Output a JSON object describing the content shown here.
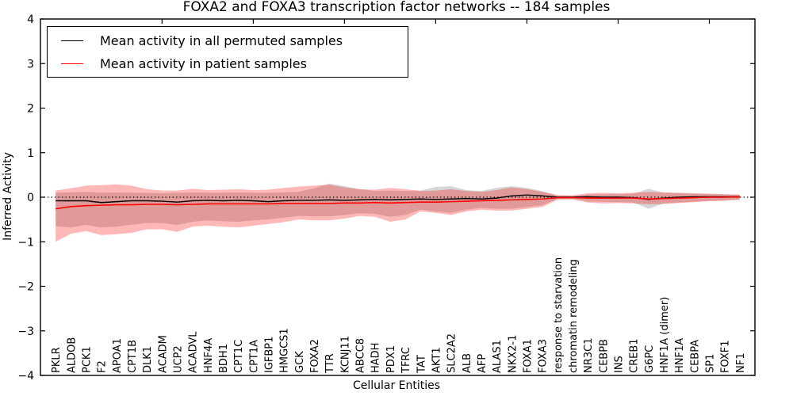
{
  "figure": {
    "background": "#ffffff"
  },
  "legend": {
    "position": "upper left",
    "items": [
      {
        "label": "Mean activity in all permuted samples",
        "color": "#000000"
      },
      {
        "label": "Mean activity in patient samples",
        "color": "#ff0000"
      }
    ]
  },
  "chart_data": {
    "type": "line",
    "title": "FOXA2 and FOXA3 transcription factor networks -- 184 samples",
    "xlabel": "Cellular Entities",
    "ylabel": "Inferred Activity",
    "ylim": [
      -4,
      4
    ],
    "ytick_labels": [
      "4",
      "3",
      "2",
      "1",
      "0",
      "−1",
      "−2",
      "−3",
      "−4"
    ],
    "ytick_values": [
      4,
      3,
      2,
      1,
      0,
      -1,
      -2,
      -3,
      -4
    ],
    "xticks_top": [
      7,
      13,
      19,
      25,
      31,
      37,
      43
    ],
    "grid": false,
    "zero_reference_line": {
      "value": 0,
      "style": "dotted",
      "color": "#000000"
    },
    "legend_position": "upper left",
    "categories": [
      "PKLR",
      "ALDOB",
      "PCK1",
      "F2",
      "APOA1",
      "CPT1B",
      "DLK1",
      "ACADM",
      "UCP2",
      "ACADVL",
      "HNF4A",
      "BDH1",
      "CPT1C",
      "CPT1A",
      "IGFBP1",
      "HMGCS1",
      "GCK",
      "FOXA2",
      "TTR",
      "KCNJ11",
      "ABCC8",
      "HADH",
      "PDX1",
      "TFRC",
      "TAT",
      "AKT1",
      "SLC2A2",
      "ALB",
      "AFP",
      "ALAS1",
      "NKX2-1",
      "FOXA1",
      "FOXA3",
      "response to starvation",
      "chromatin remodeling",
      "NR3C1",
      "CEBPB",
      "INS",
      "CREB1",
      "G6PC",
      "HNF1A (dimer)",
      "HNF1A",
      "CEBPA",
      "SP1",
      "FOXF1",
      "NF1"
    ],
    "series": [
      {
        "name": "Mean activity in all permuted samples",
        "color": "#000000",
        "band_color": "rgba(128,128,128,0.32)",
        "values": [
          -0.08,
          -0.08,
          -0.08,
          -0.12,
          -0.1,
          -0.08,
          -0.08,
          -0.09,
          -0.11,
          -0.08,
          -0.07,
          -0.08,
          -0.07,
          -0.08,
          -0.1,
          -0.08,
          -0.07,
          -0.07,
          -0.06,
          -0.07,
          -0.06,
          -0.05,
          -0.06,
          -0.05,
          -0.04,
          -0.05,
          -0.04,
          -0.03,
          -0.04,
          -0.02,
          0.03,
          0.05,
          0.03,
          0.0,
          0.0,
          0.01,
          0.0,
          0.0,
          -0.01,
          -0.05,
          -0.02,
          0.0,
          0.01,
          0.01,
          0.01,
          0.01
        ],
        "band_upper": [
          0.1,
          0.11,
          0.12,
          0.1,
          0.11,
          0.1,
          0.1,
          0.09,
          0.1,
          0.11,
          0.1,
          0.1,
          0.11,
          0.1,
          0.1,
          0.11,
          0.12,
          0.2,
          0.31,
          0.25,
          0.18,
          0.14,
          0.15,
          0.14,
          0.15,
          0.23,
          0.25,
          0.16,
          0.14,
          0.21,
          0.25,
          0.21,
          0.14,
          0.04,
          0.03,
          0.06,
          0.07,
          0.07,
          0.08,
          0.19,
          0.1,
          0.09,
          0.08,
          0.07,
          0.06,
          0.05
        ],
        "band_lower": [
          -0.65,
          -0.68,
          -0.62,
          -0.68,
          -0.66,
          -0.62,
          -0.58,
          -0.58,
          -0.62,
          -0.55,
          -0.52,
          -0.54,
          -0.55,
          -0.52,
          -0.5,
          -0.46,
          -0.42,
          -0.43,
          -0.43,
          -0.4,
          -0.36,
          -0.37,
          -0.44,
          -0.4,
          -0.28,
          -0.32,
          -0.35,
          -0.28,
          -0.24,
          -0.26,
          -0.26,
          -0.22,
          -0.18,
          -0.04,
          -0.03,
          -0.09,
          -0.1,
          -0.11,
          -0.12,
          -0.26,
          -0.14,
          -0.12,
          -0.1,
          -0.08,
          -0.07,
          -0.05
        ]
      },
      {
        "name": "Mean activity in patient samples",
        "color": "#ff0000",
        "band_color": "rgba(255,0,0,0.28)",
        "values": [
          -0.26,
          -0.21,
          -0.19,
          -0.18,
          -0.17,
          -0.17,
          -0.16,
          -0.16,
          -0.17,
          -0.16,
          -0.15,
          -0.15,
          -0.15,
          -0.15,
          -0.15,
          -0.14,
          -0.14,
          -0.14,
          -0.14,
          -0.13,
          -0.13,
          -0.12,
          -0.13,
          -0.12,
          -0.11,
          -0.11,
          -0.1,
          -0.09,
          -0.08,
          -0.07,
          -0.06,
          -0.05,
          -0.04,
          -0.01,
          -0.01,
          -0.02,
          -0.02,
          -0.02,
          -0.02,
          -0.04,
          -0.03,
          -0.02,
          -0.01,
          0.0,
          0.0,
          0.01
        ],
        "band_upper": [
          0.15,
          0.2,
          0.26,
          0.27,
          0.29,
          0.26,
          0.18,
          0.15,
          0.15,
          0.19,
          0.16,
          0.17,
          0.18,
          0.16,
          0.17,
          0.21,
          0.24,
          0.26,
          0.28,
          0.22,
          0.18,
          0.17,
          0.21,
          0.18,
          0.14,
          0.15,
          0.18,
          0.14,
          0.12,
          0.16,
          0.22,
          0.18,
          0.12,
          0.05,
          0.04,
          0.09,
          0.1,
          0.09,
          0.1,
          0.12,
          0.11,
          0.1,
          0.09,
          0.08,
          0.07,
          0.06
        ],
        "band_lower": [
          -1.0,
          -0.82,
          -0.76,
          -0.85,
          -0.83,
          -0.8,
          -0.72,
          -0.72,
          -0.78,
          -0.66,
          -0.64,
          -0.66,
          -0.68,
          -0.64,
          -0.6,
          -0.56,
          -0.5,
          -0.52,
          -0.52,
          -0.48,
          -0.42,
          -0.44,
          -0.55,
          -0.5,
          -0.32,
          -0.35,
          -0.4,
          -0.32,
          -0.28,
          -0.3,
          -0.3,
          -0.26,
          -0.22,
          -0.06,
          -0.05,
          -0.12,
          -0.14,
          -0.13,
          -0.14,
          -0.16,
          -0.15,
          -0.13,
          -0.11,
          -0.09,
          -0.08,
          -0.06
        ]
      }
    ]
  }
}
